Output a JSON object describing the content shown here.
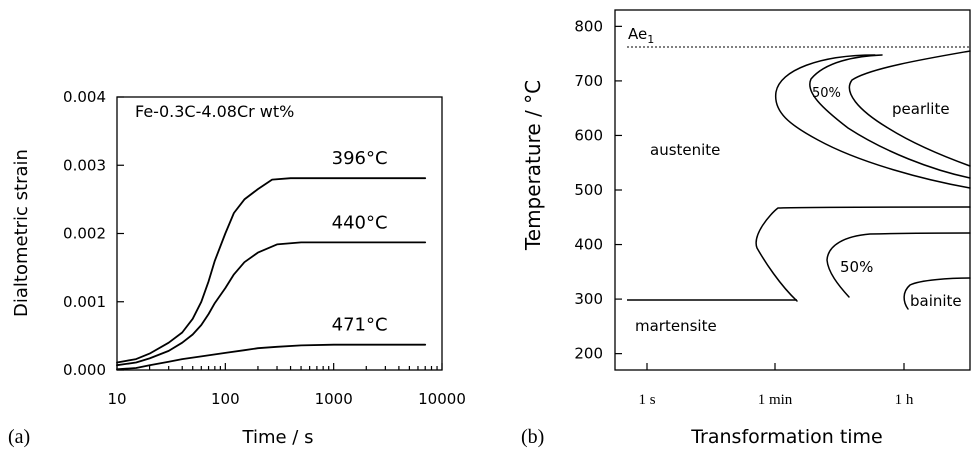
{
  "chart_data": [
    {
      "panel_label": "(a)",
      "type": "line",
      "annotation": "Fe-0.3C-4.08Cr wt%",
      "xlabel": "Time / s",
      "ylabel": "Dialtometric strain",
      "xscale": "log",
      "xlim": [
        10,
        10000
      ],
      "ylim": [
        0,
        0.004
      ],
      "xticks": [
        "10",
        "100",
        "1000",
        "10000"
      ],
      "yticks": [
        "0.000",
        "0.001",
        "0.002",
        "0.003",
        "0.004"
      ],
      "series": [
        {
          "name": "396°C",
          "x": [
            10,
            15,
            20,
            30,
            40,
            50,
            60,
            70,
            80,
            100,
            120,
            150,
            200,
            270,
            400,
            700,
            1500,
            7000
          ],
          "y": [
            0.00011,
            0.00016,
            0.00024,
            0.0004,
            0.00055,
            0.00075,
            0.001,
            0.0013,
            0.0016,
            0.002,
            0.0023,
            0.0025,
            0.00265,
            0.00279,
            0.00281,
            0.00281,
            0.00281,
            0.00281
          ]
        },
        {
          "name": "440°C",
          "x": [
            10,
            15,
            20,
            30,
            40,
            50,
            60,
            70,
            80,
            100,
            120,
            150,
            200,
            300,
            500,
            1000,
            7000
          ],
          "y": [
            7e-05,
            0.00011,
            0.00017,
            0.00028,
            0.0004,
            0.00052,
            0.00066,
            0.00082,
            0.00098,
            0.0012,
            0.0014,
            0.00158,
            0.00172,
            0.00184,
            0.00187,
            0.00187,
            0.00187
          ]
        },
        {
          "name": "471°C",
          "x": [
            10,
            15,
            20,
            30,
            40,
            60,
            100,
            150,
            200,
            300,
            500,
            1000,
            7000
          ],
          "y": [
            1e-05,
            3e-05,
            7e-05,
            0.00012,
            0.00016,
            0.0002,
            0.00025,
            0.00029,
            0.00032,
            0.00034,
            0.00036,
            0.00037,
            0.00037
          ]
        }
      ]
    },
    {
      "panel_label": "(b)",
      "type": "line",
      "xlabel": "Transformation time",
      "ylabel": "Temperature / °C",
      "ylim": [
        170,
        830
      ],
      "xticks": [
        "1 s",
        "1 min",
        "1 h"
      ],
      "yticks": [
        "200",
        "300",
        "400",
        "500",
        "600",
        "700",
        "800"
      ],
      "reference_line": {
        "label": "Ae",
        "label_sub": "1",
        "y": 760
      },
      "region_labels": [
        "austenite",
        "pearlite",
        "martensite",
        "bainite",
        "50%",
        "50%"
      ]
    }
  ]
}
